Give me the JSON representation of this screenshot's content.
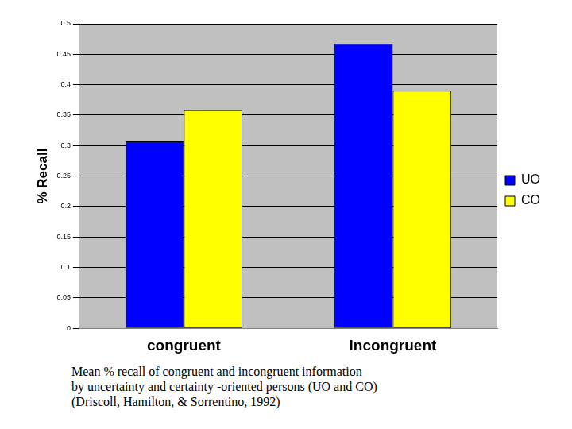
{
  "chart_data": {
    "type": "bar",
    "categories": [
      "congruent",
      "incongruent"
    ],
    "series": [
      {
        "name": "UO",
        "color": "#0000ff",
        "values": [
          0.307,
          0.467
        ]
      },
      {
        "name": "CO",
        "color": "#ffff00",
        "values": [
          0.358,
          0.39
        ]
      }
    ],
    "y_label": "% Recall",
    "ylim": [
      0,
      0.5
    ],
    "yticks": [
      0,
      0.05,
      0.1,
      0.15,
      0.2,
      0.25,
      0.3,
      0.35,
      0.4,
      0.45,
      0.5
    ],
    "grid": true,
    "legend": "right",
    "caption": [
      "Mean % recall of congruent and incongruent information",
      "by uncertainty and certainty -oriented persons (UO and CO)",
      "(Driscoll, Hamilton, & Sorrentino, 1992)"
    ]
  }
}
